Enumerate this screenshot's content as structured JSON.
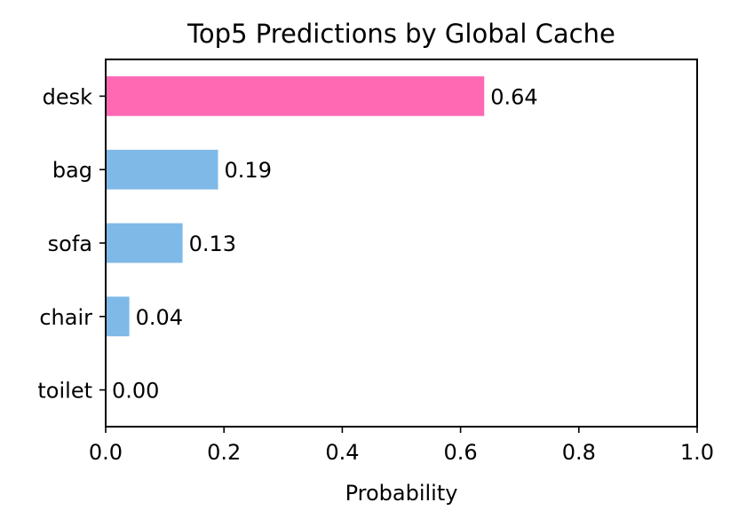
{
  "chart_data": {
    "type": "bar",
    "orientation": "horizontal",
    "title": "Top5 Predictions by Global Cache",
    "xlabel": "Probability",
    "ylabel": "",
    "xlim": [
      0.0,
      1.0
    ],
    "x_ticks": [
      "0.0",
      "0.2",
      "0.4",
      "0.6",
      "0.8",
      "1.0"
    ],
    "categories": [
      "desk",
      "bag",
      "sofa",
      "chair",
      "toilet"
    ],
    "values": [
      0.64,
      0.19,
      0.13,
      0.04,
      0.0
    ],
    "value_labels": [
      "0.64",
      "0.19",
      "0.13",
      "0.04",
      "0.00"
    ],
    "bar_colors": [
      "#ff69b4",
      "#7fb9e8",
      "#7fb9e8",
      "#7fb9e8",
      "#7fb9e8"
    ],
    "grid": false,
    "legend": "none"
  }
}
